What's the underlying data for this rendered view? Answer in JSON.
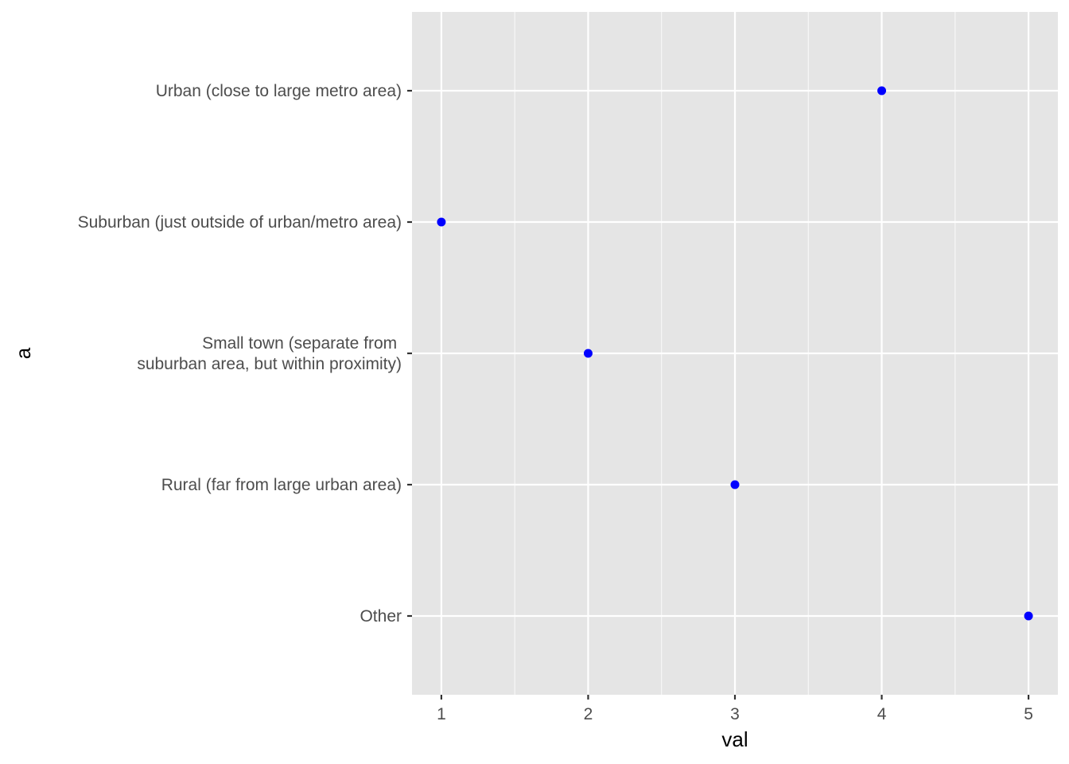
{
  "chart_data": {
    "type": "scatter",
    "title": "",
    "xlabel": "val",
    "ylabel": "a",
    "xlim": [
      0.8,
      5.2
    ],
    "x_ticks": [
      1,
      2,
      3,
      4,
      5
    ],
    "x_tick_labels": [
      "1",
      "2",
      "3",
      "4",
      "5"
    ],
    "categories": [
      "Urban (close to large metro area)",
      "Suburban (just outside of urban/metro area)",
      "Small town (separate from \nsuburban area, but within proximity)",
      "Rural (far from large urban area)",
      "Other"
    ],
    "points": [
      {
        "category": "Urban (close to large metro area)",
        "x": 4
      },
      {
        "category": "Suburban (just outside of urban/metro area)",
        "x": 1
      },
      {
        "category": "Small town (separate from \nsuburban area, but within proximity)",
        "x": 2
      },
      {
        "category": "Rural (far from large urban area)",
        "x": 3
      },
      {
        "category": "Other",
        "x": 5
      }
    ],
    "grid": true,
    "colors": {
      "panel": "#e5e5e5",
      "grid_major": "#ffffff",
      "point": "#0000ff",
      "tick_text": "#4d4d4d",
      "tick_mark": "#333333"
    }
  }
}
